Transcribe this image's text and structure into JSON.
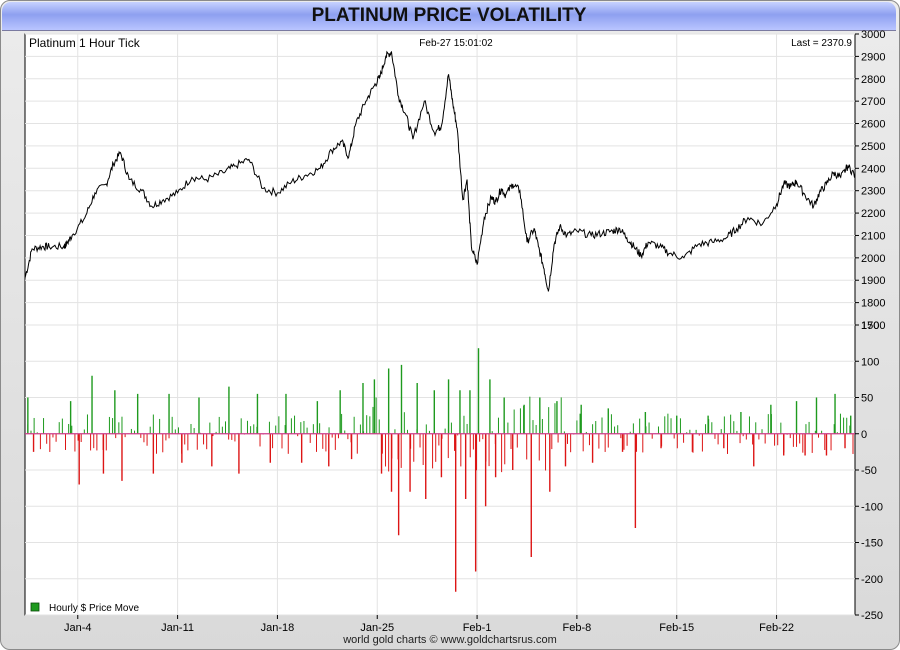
{
  "page": {
    "title": "PLATINUM PRICE VOLATILITY",
    "footer": "world gold charts © www.goldchartsrus.com"
  },
  "chart_data": [
    {
      "type": "line",
      "title": "Platinum 1 Hour Tick",
      "timestamp": "Feb-27  15:01:02",
      "last_label": "Last = 2370.9",
      "ylim": [
        1700,
        3000
      ],
      "yticks": [
        1700,
        1800,
        1900,
        2000,
        2100,
        2200,
        2300,
        2400,
        2500,
        2600,
        2700,
        2800,
        2900,
        3000
      ],
      "x_ticks": [
        "Jan-4",
        "Jan-11",
        "Jan-18",
        "Jan-25",
        "Feb-1",
        "Feb-8",
        "Feb-15",
        "Feb-22"
      ],
      "x_tick_days": [
        4,
        11,
        18,
        25,
        32,
        39,
        46,
        53
      ],
      "xlim_days": [
        0.3,
        58.5
      ],
      "line_color": "#000000",
      "series": [
        {
          "x_days": [
            0.3,
            0.8,
            1.5,
            2.0,
            3.0,
            3.2,
            3.6,
            4.5,
            5.2,
            6.0,
            6.5,
            7.0,
            7.6,
            8.5,
            9.2,
            10.0,
            11.0,
            12.0,
            13.0,
            14.2,
            15.0,
            16.0,
            17.0,
            18.0,
            19.0,
            20.0,
            21.0,
            21.8,
            22.5,
            23.0,
            23.5,
            24.2,
            24.8,
            25.2,
            25.6,
            26.0,
            26.5,
            27.0,
            27.5,
            28.3,
            29.0,
            29.5,
            30.0,
            30.3,
            30.6,
            31.0,
            31.3,
            31.6,
            32.0,
            32.5,
            33.0,
            33.3,
            33.7,
            34.0,
            34.5,
            35.0,
            35.5,
            36.0,
            36.3,
            36.7,
            37.0,
            37.4,
            37.8,
            38.3,
            39.0,
            40.0,
            40.8,
            41.5,
            42.0,
            42.5,
            43.0,
            43.5,
            44.0,
            44.8,
            45.5,
            46.5,
            47.5,
            48.5,
            49.5,
            50.2,
            51.0,
            52.0,
            53.0,
            53.5,
            54.0,
            54.4,
            55.0,
            55.6,
            56.0,
            56.5,
            57.0,
            57.5,
            58.0,
            58.5
          ],
          "values": [
            1910,
            2040,
            2050,
            2050,
            2050,
            2060,
            2100,
            2180,
            2290,
            2330,
            2420,
            2470,
            2350,
            2300,
            2230,
            2260,
            2290,
            2360,
            2350,
            2380,
            2410,
            2440,
            2310,
            2290,
            2340,
            2370,
            2400,
            2480,
            2520,
            2450,
            2600,
            2700,
            2770,
            2810,
            2900,
            2920,
            2720,
            2640,
            2530,
            2700,
            2560,
            2590,
            2820,
            2690,
            2580,
            2260,
            2350,
            2050,
            1970,
            2180,
            2270,
            2250,
            2310,
            2280,
            2330,
            2300,
            2070,
            2130,
            2050,
            1950,
            1850,
            2060,
            2140,
            2100,
            2120,
            2100,
            2110,
            2120,
            2130,
            2090,
            2050,
            2010,
            2070,
            2050,
            2020,
            2000,
            2060,
            2070,
            2090,
            2130,
            2180,
            2150,
            2240,
            2330,
            2320,
            2340,
            2280,
            2230,
            2290,
            2330,
            2380,
            2360,
            2410,
            2370
          ]
        }
      ]
    },
    {
      "type": "bar",
      "legend": "Hourly $ Price Move",
      "ylim": [
        -250,
        150
      ],
      "yticks": [
        -250,
        -200,
        -150,
        -100,
        -50,
        0,
        50,
        100,
        150
      ],
      "colors": {
        "up": "#1e9a1e",
        "down": "#dd1515",
        "zero_line": "#cc3d8a"
      },
      "bars": [
        {
          "day": 0.5,
          "value": 50
        },
        {
          "day": 0.9,
          "value": -25
        },
        {
          "day": 3.5,
          "value": 45
        },
        {
          "day": 4.1,
          "value": -70
        },
        {
          "day": 5.0,
          "value": 80
        },
        {
          "day": 5.8,
          "value": -55
        },
        {
          "day": 6.6,
          "value": 60
        },
        {
          "day": 7.1,
          "value": -65
        },
        {
          "day": 8.2,
          "value": 55
        },
        {
          "day": 9.3,
          "value": -55
        },
        {
          "day": 10.4,
          "value": 55
        },
        {
          "day": 11.3,
          "value": -40
        },
        {
          "day": 12.5,
          "value": 50
        },
        {
          "day": 13.4,
          "value": -45
        },
        {
          "day": 14.6,
          "value": 65
        },
        {
          "day": 15.3,
          "value": -55
        },
        {
          "day": 16.6,
          "value": 55
        },
        {
          "day": 17.5,
          "value": -40
        },
        {
          "day": 18.6,
          "value": 55
        },
        {
          "day": 19.7,
          "value": -40
        },
        {
          "day": 20.8,
          "value": 45
        },
        {
          "day": 21.6,
          "value": -45
        },
        {
          "day": 22.4,
          "value": 60
        },
        {
          "day": 23.2,
          "value": -35
        },
        {
          "day": 24.0,
          "value": 70
        },
        {
          "day": 24.8,
          "value": 75
        },
        {
          "day": 25.3,
          "value": -55
        },
        {
          "day": 25.8,
          "value": 90
        },
        {
          "day": 26.0,
          "value": -80
        },
        {
          "day": 26.5,
          "value": -140
        },
        {
          "day": 26.7,
          "value": 95
        },
        {
          "day": 27.3,
          "value": -80
        },
        {
          "day": 27.8,
          "value": 70
        },
        {
          "day": 28.4,
          "value": -90
        },
        {
          "day": 29.0,
          "value": 60
        },
        {
          "day": 29.5,
          "value": -60
        },
        {
          "day": 30.0,
          "value": 75
        },
        {
          "day": 30.5,
          "value": -218
        },
        {
          "day": 30.8,
          "value": 60
        },
        {
          "day": 31.2,
          "value": -90
        },
        {
          "day": 31.5,
          "value": 60
        },
        {
          "day": 31.9,
          "value": -190
        },
        {
          "day": 32.1,
          "value": 118
        },
        {
          "day": 32.6,
          "value": -100
        },
        {
          "day": 32.9,
          "value": 75
        },
        {
          "day": 33.3,
          "value": -60
        },
        {
          "day": 33.9,
          "value": 50
        },
        {
          "day": 34.5,
          "value": -50
        },
        {
          "day": 35.3,
          "value": 40
        },
        {
          "day": 35.8,
          "value": -170
        },
        {
          "day": 36.4,
          "value": 50
        },
        {
          "day": 37.1,
          "value": -80
        },
        {
          "day": 37.6,
          "value": 45
        },
        {
          "day": 38.2,
          "value": -45
        },
        {
          "day": 39.3,
          "value": 40
        },
        {
          "day": 40.1,
          "value": -40
        },
        {
          "day": 41.2,
          "value": 35
        },
        {
          "day": 42.2,
          "value": -25
        },
        {
          "day": 43.1,
          "value": -130
        },
        {
          "day": 43.8,
          "value": 30
        },
        {
          "day": 44.9,
          "value": -20
        },
        {
          "day": 46.0,
          "value": 25
        },
        {
          "day": 47.1,
          "value": -25
        },
        {
          "day": 48.2,
          "value": 25
        },
        {
          "day": 49.3,
          "value": -20
        },
        {
          "day": 50.5,
          "value": 30
        },
        {
          "day": 51.4,
          "value": -45
        },
        {
          "day": 52.6,
          "value": 40
        },
        {
          "day": 53.5,
          "value": -30
        },
        {
          "day": 54.4,
          "value": 45
        },
        {
          "day": 55.0,
          "value": -30
        },
        {
          "day": 55.8,
          "value": 50
        },
        {
          "day": 56.5,
          "value": -30
        },
        {
          "day": 57.1,
          "value": 55
        },
        {
          "day": 57.8,
          "value": -20
        },
        {
          "day": 58.2,
          "value": 25
        }
      ]
    }
  ]
}
